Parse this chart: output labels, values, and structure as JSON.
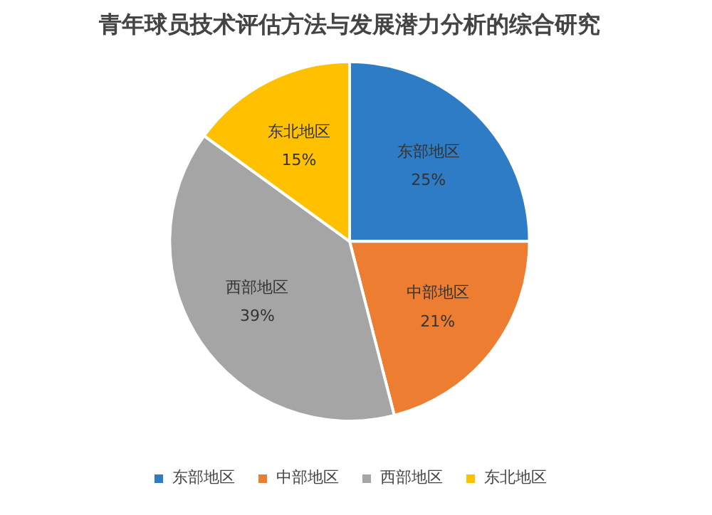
{
  "chart_data": {
    "type": "pie",
    "title": "青年球员技术评估方法与发展潜力分析的综合研究",
    "categories": [
      "东部地区",
      "中部地区",
      "西部地区",
      "东北地区"
    ],
    "values": [
      25,
      21,
      39,
      15
    ],
    "value_labels": [
      "25%",
      "21%",
      "39%",
      "15%"
    ],
    "colors": [
      "#2e7cc6",
      "#ed7d31",
      "#a5a5a5",
      "#ffc000"
    ],
    "legend": "bottom"
  }
}
